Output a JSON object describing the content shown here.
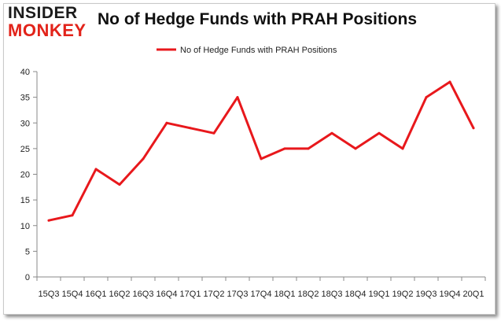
{
  "logo": {
    "line1": "INSIDER",
    "line2": "MONKEY"
  },
  "colors": {
    "line": "#e8181c",
    "axis": "#888888",
    "text": "#222222"
  },
  "chart_data": {
    "type": "line",
    "title": "No of Hedge Funds with PRAH Positions",
    "legend": "top-center",
    "grid": false,
    "ylim": [
      0,
      40
    ],
    "yticks": [
      0,
      5,
      10,
      15,
      20,
      25,
      30,
      35,
      40
    ],
    "categories": [
      "15Q3",
      "15Q4",
      "16Q1",
      "16Q2",
      "16Q3",
      "16Q4",
      "17Q1",
      "17Q2",
      "17Q3",
      "17Q4",
      "18Q1",
      "18Q2",
      "18Q3",
      "18Q4",
      "19Q1",
      "19Q2",
      "19Q3",
      "19Q4",
      "20Q1"
    ],
    "series": [
      {
        "name": "No of Hedge Funds with PRAH Positions",
        "values": [
          11,
          12,
          21,
          18,
          23,
          30,
          29,
          28,
          35,
          23,
          25,
          25,
          28,
          25,
          28,
          25,
          35,
          38,
          29
        ]
      }
    ]
  }
}
